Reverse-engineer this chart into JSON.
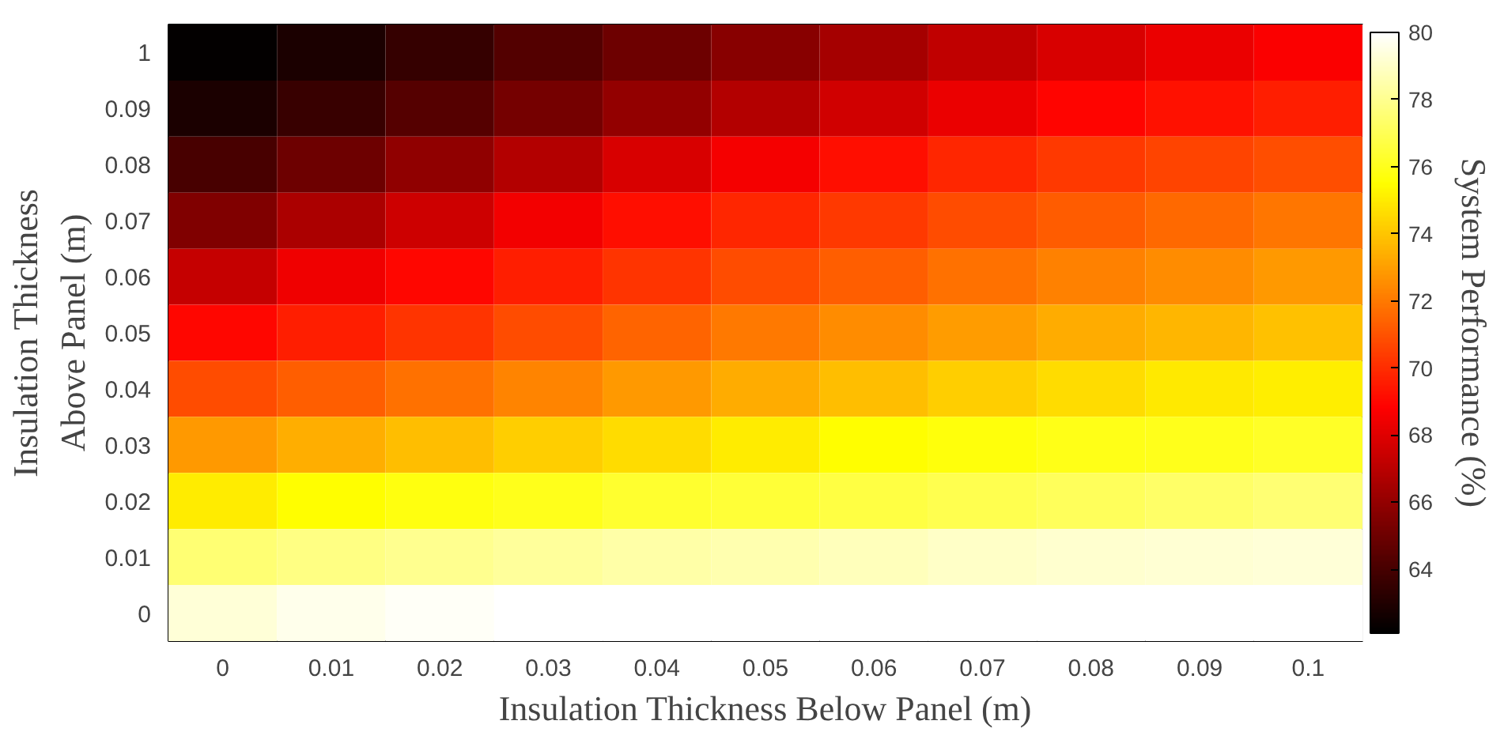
{
  "chart_data": {
    "type": "heatmap",
    "xlabel": "Insulation Thickness Below Panel (m)",
    "ylabel": "Insulation Thickness\nAbove Panel (m)",
    "clabel": "System Performance (%)",
    "categories": [
      "0",
      "0.01",
      "0.02",
      "0.03",
      "0.04",
      "0.05",
      "0.06",
      "0.07",
      "0.08",
      "0.09",
      "0.1"
    ],
    "y_categories": [
      "1",
      "0.09",
      "0.08",
      "0.07",
      "0.06",
      "0.05",
      "0.04",
      "0.03",
      "0.02",
      "0.01",
      "0"
    ],
    "cells": [
      [
        62.2,
        62.8,
        63.5,
        64.3,
        65.0,
        65.7,
        66.5,
        67.2,
        67.8,
        68.3,
        68.7
      ],
      [
        62.8,
        63.6,
        64.4,
        65.2,
        66.0,
        66.8,
        67.6,
        68.3,
        68.9,
        69.3,
        69.6
      ],
      [
        64.0,
        65.0,
        65.9,
        66.8,
        67.8,
        68.6,
        69.2,
        69.8,
        70.3,
        70.6,
        70.9
      ],
      [
        65.5,
        66.6,
        67.5,
        68.5,
        69.2,
        69.8,
        70.3,
        70.8,
        71.2,
        71.6,
        71.9
      ],
      [
        67.3,
        68.4,
        69.0,
        69.6,
        70.2,
        70.8,
        71.3,
        71.8,
        72.2,
        72.5,
        72.8
      ],
      [
        69.0,
        69.6,
        70.2,
        70.8,
        71.4,
        72.0,
        72.5,
        72.9,
        73.3,
        73.6,
        73.9
      ],
      [
        70.8,
        71.3,
        71.8,
        72.3,
        72.8,
        73.3,
        73.8,
        74.2,
        74.6,
        74.9,
        75.1
      ],
      [
        72.8,
        73.4,
        73.8,
        74.2,
        74.6,
        75.0,
        75.5,
        75.7,
        75.9,
        76.0,
        76.2
      ],
      [
        75.0,
        75.5,
        75.8,
        76.0,
        76.3,
        76.5,
        76.7,
        76.9,
        77.1,
        77.3,
        77.5
      ],
      [
        77.5,
        77.8,
        78.0,
        78.2,
        78.4,
        78.6,
        78.8,
        79.0,
        79.1,
        79.2,
        79.3
      ],
      [
        79.3,
        79.6,
        79.8,
        80.0,
        80.0,
        80.0,
        80.0,
        80.0,
        80.0,
        80.0,
        80.0
      ]
    ],
    "clim": [
      62.1,
      80
    ],
    "cticks": [
      64,
      66,
      68,
      70,
      72,
      74,
      76,
      78,
      80
    ]
  }
}
